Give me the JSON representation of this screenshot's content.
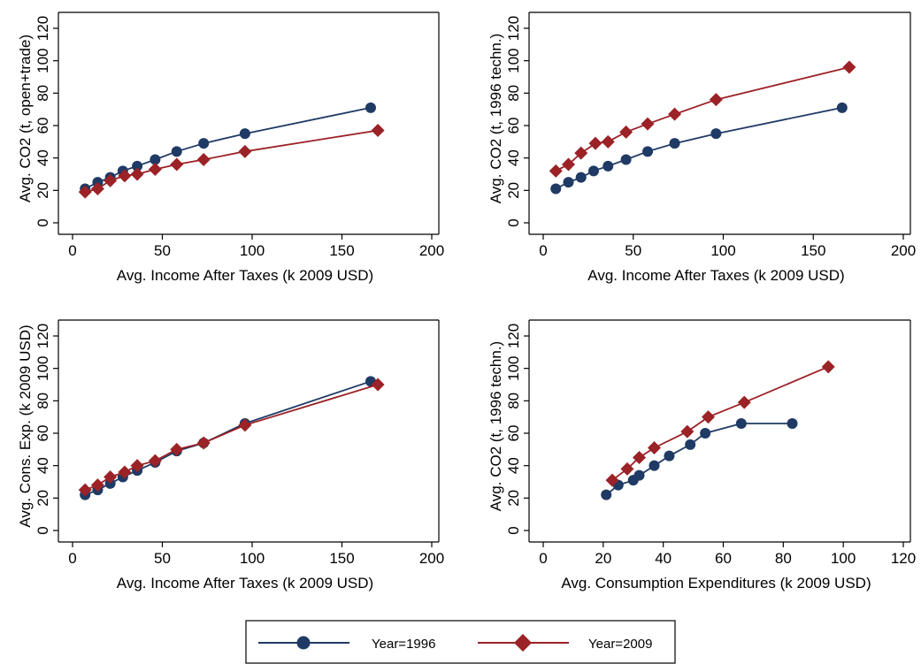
{
  "colors": {
    "s1996": "#1f3a64",
    "s2009": "#9b2226"
  },
  "legend": {
    "items": [
      {
        "label": "Year=1996",
        "marker": "circle",
        "color": "#1f3a64"
      },
      {
        "label": "Year=2009",
        "marker": "diamond",
        "color": "#9b2226"
      }
    ]
  },
  "chart_data": [
    {
      "type": "line",
      "xlabel": "Avg. Income After Taxes (k 2009 USD)",
      "ylabel": "Avg. CO2 (t, open+trade)",
      "xlim": [
        0,
        200
      ],
      "ylim": [
        0,
        120
      ],
      "xticks": [
        0,
        50,
        100,
        150,
        200
      ],
      "yticks": [
        0,
        20,
        40,
        60,
        80,
        100,
        120
      ],
      "series": [
        {
          "name": "Year=1996",
          "marker": "circle",
          "x": [
            7,
            14,
            21,
            28,
            36,
            46,
            58,
            73,
            96,
            166
          ],
          "y": [
            21,
            25,
            28,
            32,
            35,
            39,
            44,
            49,
            55,
            71
          ]
        },
        {
          "name": "Year=2009",
          "marker": "diamond",
          "x": [
            7,
            14,
            21,
            29,
            36,
            46,
            58,
            73,
            96,
            170
          ],
          "y": [
            19,
            21,
            26,
            29,
            30,
            33,
            36,
            39,
            44,
            57
          ]
        }
      ]
    },
    {
      "type": "line",
      "xlabel": "Avg. Income After Taxes (k 2009 USD)",
      "ylabel": "Avg. CO2 (t, 1996 techn.)",
      "xlim": [
        0,
        200
      ],
      "ylim": [
        0,
        120
      ],
      "xticks": [
        0,
        50,
        100,
        150,
        200
      ],
      "yticks": [
        0,
        20,
        40,
        60,
        80,
        100,
        120
      ],
      "series": [
        {
          "name": "Year=1996",
          "marker": "circle",
          "x": [
            7,
            14,
            21,
            28,
            36,
            46,
            58,
            73,
            96,
            166
          ],
          "y": [
            21,
            25,
            28,
            32,
            35,
            39,
            44,
            49,
            55,
            71
          ]
        },
        {
          "name": "Year=2009",
          "marker": "diamond",
          "x": [
            7,
            14,
            21,
            29,
            36,
            46,
            58,
            73,
            96,
            170
          ],
          "y": [
            32,
            36,
            43,
            49,
            50,
            56,
            61,
            67,
            76,
            96
          ]
        }
      ]
    },
    {
      "type": "line",
      "xlabel": "Avg. Income After Taxes (k 2009 USD)",
      "ylabel": "Avg. Cons. Exp. (k 2009 USD)",
      "xlim": [
        0,
        200
      ],
      "ylim": [
        0,
        120
      ],
      "xticks": [
        0,
        50,
        100,
        150,
        200
      ],
      "yticks": [
        0,
        20,
        40,
        60,
        80,
        100,
        120
      ],
      "series": [
        {
          "name": "Year=1996",
          "marker": "circle",
          "x": [
            7,
            14,
            21,
            28,
            36,
            46,
            58,
            73,
            96,
            166
          ],
          "y": [
            22,
            25,
            29,
            33,
            37,
            42,
            49,
            54,
            66,
            92
          ]
        },
        {
          "name": "Year=2009",
          "marker": "diamond",
          "x": [
            7,
            14,
            21,
            29,
            36,
            46,
            58,
            73,
            96,
            170
          ],
          "y": [
            25,
            28,
            33,
            36,
            40,
            43,
            50,
            54,
            65,
            90
          ]
        }
      ]
    },
    {
      "type": "line",
      "xlabel": "Avg. Consumption Expenditures (k 2009 USD)",
      "ylabel": "Avg. CO2 (t, 1996 techn.)",
      "xlim": [
        0,
        120
      ],
      "ylim": [
        0,
        120
      ],
      "xticks": [
        0,
        20,
        40,
        60,
        80,
        100,
        120
      ],
      "yticks": [
        0,
        20,
        40,
        60,
        80,
        100,
        120
      ],
      "series": [
        {
          "name": "Year=1996",
          "marker": "circle",
          "x": [
            21,
            25,
            30,
            32,
            37,
            42,
            49,
            54,
            66,
            83
          ],
          "y": [
            22,
            28,
            31,
            34,
            40,
            46,
            53,
            60,
            66,
            66
          ]
        },
        {
          "name": "Year=2009",
          "marker": "diamond",
          "x": [
            23,
            28,
            32,
            37,
            48,
            55,
            67,
            95
          ],
          "y": [
            31,
            38,
            45,
            51,
            61,
            70,
            79,
            101
          ]
        }
      ]
    }
  ]
}
